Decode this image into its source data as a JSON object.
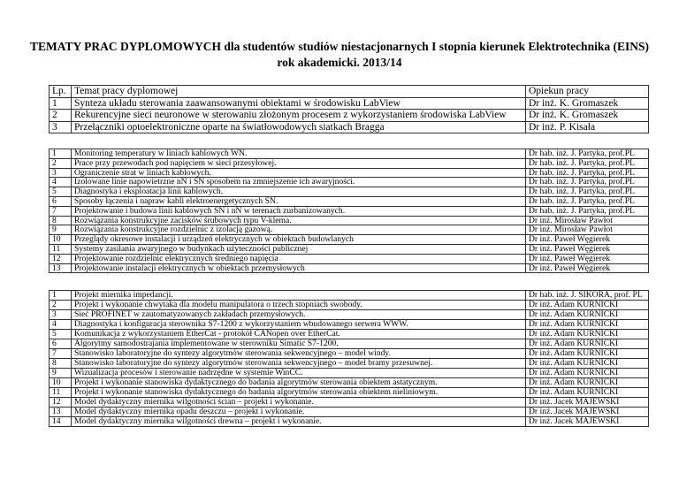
{
  "title": {
    "line1": "TEMATY PRAC DYPLOMOWYCH dla studentów studiów niestacjonarnych I stopnia kierunek Elektrotechnika (EINS)",
    "line2": "rok akademicki. 2013/14"
  },
  "table1": {
    "header": {
      "lp": "Lp.",
      "topic": "Temat pracy dyplomowej",
      "supervisor": "Opiekun pracy"
    },
    "rows": [
      {
        "lp": "1",
        "topic": "Synteza układu sterowania zaawansowanymi obiektami w środowisku LabView",
        "supervisor": "Dr inż. K. Gromaszek"
      },
      {
        "lp": "2",
        "topic": "Rekurencyjne sieci neuronowe w sterowaniu złożonym procesem z wykorzystaniem środowiska LabView",
        "supervisor": "Dr inż. K. Gromaszek"
      },
      {
        "lp": "3",
        "topic": "Przełączniki optoelektroniczne oparte na światłowodowych siatkach Bragga",
        "supervisor": "Dr inż. P. Kisała"
      }
    ]
  },
  "table2": {
    "rows": [
      {
        "lp": "1",
        "topic": "Monitoring temperatury w liniach kablowych WN.",
        "supervisor": "Dr hab. inż. J. Partyka, prof.PL"
      },
      {
        "lp": "2",
        "topic": "Prace przy przewodach pod napięciem w sieci przesyłowej.",
        "supervisor": "Dr hab. inż. J. Partyka, prof.PL"
      },
      {
        "lp": "3",
        "topic": "Ograniczenie strat w liniach kablowych.",
        "supervisor": "Dr hab. inż. J. Partyka, prof.PL"
      },
      {
        "lp": "4",
        "topic": "Izolowane linie napowietrzne nN i SN sposobem na zmniejszenie ich awaryjności.",
        "supervisor": "Dr hab. inż. J. Partyka, prof.PL"
      },
      {
        "lp": "5",
        "topic": "Diagnostyka i eksploatacja linii kablowych.",
        "supervisor": "Dr hab. inż. J. Partyka, prof.PL"
      },
      {
        "lp": "6",
        "topic": "Sposoby łączenia i napraw kabli elektroenergetycznych SN.",
        "supervisor": "Dr hab. inż. J. Partyka, prof.PL"
      },
      {
        "lp": "7",
        "topic": "Projektowanie i budowa linii kablowych SN i nN w terenach zurbanizowanych.",
        "supervisor": "Dr hab. inż. J. Partyka, prof.PL"
      },
      {
        "lp": "8",
        "topic": "Rozwiązania konstrukcyjne zacisków śrubowych typu V-klema.",
        "supervisor": "Dr inż. Mirosław Pawłot"
      },
      {
        "lp": "9",
        "topic": "Rozwiązania konstrukcyjne rozdzielnic z izolacją gazową.",
        "supervisor": "Dr inż. Mirosław Pawłot"
      },
      {
        "lp": "10",
        "topic": "Przeglądy okresowe instalacji i urządzeń elektrycznych w obiektach budowlanych",
        "supervisor": "Dr inż. Paweł Węgierek"
      },
      {
        "lp": "11",
        "topic": "Systemy zasilania awaryjnego w budynkach użyteczności publicznej",
        "supervisor": "Dr inż. Paweł Węgierek"
      },
      {
        "lp": "12",
        "topic": "Projektowanie rozdzielnic elektrycznych średniego napięcia",
        "supervisor": "Dr inż. Paweł Węgierek"
      },
      {
        "lp": "13",
        "topic": "Projektowanie instalacji elektrycznych w obiektach przemysłowych",
        "supervisor": "Dr inż. Paweł Węgierek"
      }
    ]
  },
  "table3": {
    "rows": [
      {
        "lp": "1",
        "topic": "Projekt  miernika impedancji.",
        "supervisor": "Dr hab. inż. J. SIKORA, prof. PL"
      },
      {
        "lp": "2",
        "topic": "Projekt i wykonanie chwytaka dla modelu manipulatora o trzech stopniach swobody.",
        "supervisor": "Dr inż. Adam KURNICKI"
      },
      {
        "lp": "3",
        "topic": "Sieć PROFINET w zautomatyzowanych zakładach przemysłowych.",
        "supervisor": "Dr inż. Adam KURNICKI"
      },
      {
        "lp": "4",
        "topic": "Diagnostyka i konfiguracja sterownika S7-1200  z wykorzystaniem wbudowanego serwera WWW.",
        "supervisor": "Dr inż. Adam KURNICKI"
      },
      {
        "lp": "5",
        "topic": "Komunikacja z wykorzystaniem  EtherCat -  protokół CANopen over EtherCat.",
        "supervisor": "Dr inż. Adam KURNICKI"
      },
      {
        "lp": "6",
        "topic": "Algorytmy samodostrajania  implementowane w sterowniku Simatic S7-1200.",
        "supervisor": "Dr inż. Adam KURNICKI"
      },
      {
        "lp": "7",
        "topic": "Stanowisko laboratoryjne do syntezy algorytmów sterowania sekwencyjnego – model windy.",
        "supervisor": "Dr inż. Adam KURNICKI"
      },
      {
        "lp": "8",
        "topic": "Stanowisko laboratoryjne do syntezy algorytmów sterowania sekwencyjnego – model bramy przesuwnej.",
        "supervisor": "Dr inż. Adam KURNICKI"
      },
      {
        "lp": "9",
        "topic": "Wizualizacja procesów i sterowanie nadrzędne w systemie WinCC.",
        "supervisor": "Dr inż. Adam KURNICKI"
      },
      {
        "lp": "10",
        "topic": "Projekt i wykonanie stanowiska dydaktycznego do badania algorytmów sterowania obiektem astatycznym.",
        "supervisor": "Dr inż. Adam KURNICKI"
      },
      {
        "lp": "11",
        "topic": "Projekt i wykonanie stanowiska dydaktycznego do badania algorytmów sterowania obiektem nieliniowym.",
        "supervisor": "Dr inż. Adam KURNICKI"
      },
      {
        "lp": "12",
        "topic": "Model dydaktyczny miernika wilgotności ścian – projekt i wykonanie.",
        "supervisor": "Dr inż. Jacek  MAJEWSKI"
      },
      {
        "lp": "13",
        "topic": "Model dydaktyczny miernika opadu deszczu – projekt i wykonanie.",
        "supervisor": "Dr inż. Jacek  MAJEWSKI"
      },
      {
        "lp": "14",
        "topic": "Model dydaktyczny miernika wilgotności drewna – projekt i wykonanie.",
        "supervisor": "Dr inż. Jacek  MAJEWSKI"
      }
    ]
  }
}
